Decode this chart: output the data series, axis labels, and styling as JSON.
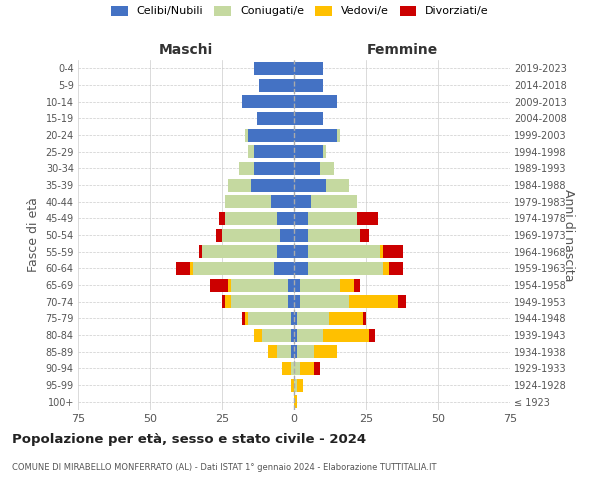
{
  "age_groups": [
    "100+",
    "95-99",
    "90-94",
    "85-89",
    "80-84",
    "75-79",
    "70-74",
    "65-69",
    "60-64",
    "55-59",
    "50-54",
    "45-49",
    "40-44",
    "35-39",
    "30-34",
    "25-29",
    "20-24",
    "15-19",
    "10-14",
    "5-9",
    "0-4"
  ],
  "birth_years": [
    "≤ 1923",
    "1924-1928",
    "1929-1933",
    "1934-1938",
    "1939-1943",
    "1944-1948",
    "1949-1953",
    "1954-1958",
    "1959-1963",
    "1964-1968",
    "1969-1973",
    "1974-1978",
    "1979-1983",
    "1984-1988",
    "1989-1993",
    "1994-1998",
    "1999-2003",
    "2004-2008",
    "2009-2013",
    "2014-2018",
    "2019-2023"
  ],
  "males": {
    "celibi": [
      0,
      0,
      0,
      1,
      1,
      1,
      2,
      2,
      7,
      6,
      5,
      6,
      8,
      15,
      14,
      14,
      16,
      13,
      18,
      12,
      14
    ],
    "coniugati": [
      0,
      0,
      1,
      5,
      10,
      15,
      20,
      20,
      28,
      26,
      20,
      18,
      16,
      8,
      5,
      2,
      1,
      0,
      0,
      0,
      0
    ],
    "vedovi": [
      0,
      1,
      3,
      3,
      3,
      1,
      2,
      1,
      1,
      0,
      0,
      0,
      0,
      0,
      0,
      0,
      0,
      0,
      0,
      0,
      0
    ],
    "divorziati": [
      0,
      0,
      0,
      0,
      0,
      1,
      1,
      6,
      5,
      1,
      2,
      2,
      0,
      0,
      0,
      0,
      0,
      0,
      0,
      0,
      0
    ]
  },
  "females": {
    "nubili": [
      0,
      0,
      0,
      1,
      1,
      1,
      2,
      2,
      5,
      5,
      5,
      5,
      6,
      11,
      9,
      10,
      15,
      10,
      15,
      10,
      10
    ],
    "coniugate": [
      0,
      1,
      2,
      6,
      9,
      11,
      17,
      14,
      26,
      25,
      18,
      17,
      16,
      8,
      5,
      1,
      1,
      0,
      0,
      0,
      0
    ],
    "vedove": [
      1,
      2,
      5,
      8,
      16,
      12,
      17,
      5,
      2,
      1,
      0,
      0,
      0,
      0,
      0,
      0,
      0,
      0,
      0,
      0,
      0
    ],
    "divorziate": [
      0,
      0,
      2,
      0,
      2,
      1,
      3,
      2,
      5,
      7,
      3,
      7,
      0,
      0,
      0,
      0,
      0,
      0,
      0,
      0,
      0
    ]
  },
  "colors": {
    "celibi": "#4472c4",
    "coniugati": "#c5d9a0",
    "vedovi": "#ffc000",
    "divorziati": "#cc0000"
  },
  "xlim": 75,
  "title": "Popolazione per età, sesso e stato civile - 2024",
  "subtitle": "COMUNE DI MIRABELLO MONFERRATO (AL) - Dati ISTAT 1° gennaio 2024 - Elaborazione TUTTITALIA.IT",
  "ylabel_left": "Fasce di età",
  "ylabel_right": "Anni di nascita",
  "xlabel_left": "Maschi",
  "xlabel_right": "Femmine"
}
